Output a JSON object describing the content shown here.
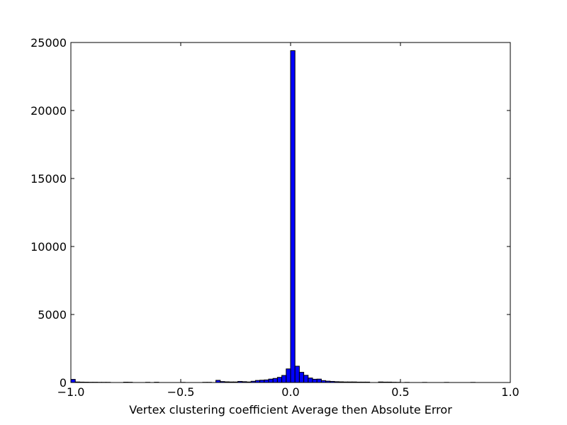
{
  "chart_data": {
    "type": "bar",
    "title": "",
    "xlabel": "Vertex clustering coefficient Average then Absolute Error",
    "ylabel": "",
    "xlim": [
      -1.0,
      1.0
    ],
    "ylim": [
      0,
      25000
    ],
    "x_ticks": [
      -1.0,
      -0.5,
      0.0,
      0.5,
      1.0
    ],
    "x_tick_labels": [
      "−1.0",
      "−0.5",
      "0.0",
      "0.5",
      "1.0"
    ],
    "y_ticks": [
      0,
      5000,
      10000,
      15000,
      20000,
      25000
    ],
    "y_tick_labels": [
      "0",
      "5000",
      "10000",
      "15000",
      "20000",
      "25000"
    ],
    "grid": false,
    "bar_color": "#0000ff",
    "bin_width": 0.02,
    "bins": [
      {
        "x": -1.0,
        "value": 230
      },
      {
        "x": -0.98,
        "value": 40
      },
      {
        "x": -0.96,
        "value": 30
      },
      {
        "x": -0.94,
        "value": 25
      },
      {
        "x": -0.92,
        "value": 20
      },
      {
        "x": -0.9,
        "value": 20
      },
      {
        "x": -0.88,
        "value": 15
      },
      {
        "x": -0.86,
        "value": 15
      },
      {
        "x": -0.84,
        "value": 15
      },
      {
        "x": -0.76,
        "value": 25
      },
      {
        "x": -0.74,
        "value": 20
      },
      {
        "x": -0.66,
        "value": 15
      },
      {
        "x": -0.62,
        "value": 20
      },
      {
        "x": -0.5,
        "value": 10
      },
      {
        "x": -0.4,
        "value": 15
      },
      {
        "x": -0.38,
        "value": 15
      },
      {
        "x": -0.34,
        "value": 160
      },
      {
        "x": -0.32,
        "value": 70
      },
      {
        "x": -0.3,
        "value": 50
      },
      {
        "x": -0.28,
        "value": 40
      },
      {
        "x": -0.26,
        "value": 40
      },
      {
        "x": -0.24,
        "value": 80
      },
      {
        "x": -0.22,
        "value": 60
      },
      {
        "x": -0.2,
        "value": 40
      },
      {
        "x": -0.18,
        "value": 90
      },
      {
        "x": -0.16,
        "value": 150
      },
      {
        "x": -0.14,
        "value": 170
      },
      {
        "x": -0.12,
        "value": 190
      },
      {
        "x": -0.1,
        "value": 250
      },
      {
        "x": -0.08,
        "value": 300
      },
      {
        "x": -0.06,
        "value": 380
      },
      {
        "x": -0.04,
        "value": 520
      },
      {
        "x": -0.02,
        "value": 1000
      },
      {
        "x": 0.0,
        "value": 24400
      },
      {
        "x": 0.02,
        "value": 1200
      },
      {
        "x": 0.04,
        "value": 750
      },
      {
        "x": 0.06,
        "value": 530
      },
      {
        "x": 0.08,
        "value": 330
      },
      {
        "x": 0.1,
        "value": 240
      },
      {
        "x": 0.12,
        "value": 250
      },
      {
        "x": 0.14,
        "value": 140
      },
      {
        "x": 0.16,
        "value": 100
      },
      {
        "x": 0.18,
        "value": 80
      },
      {
        "x": 0.2,
        "value": 60
      },
      {
        "x": 0.22,
        "value": 50
      },
      {
        "x": 0.24,
        "value": 40
      },
      {
        "x": 0.26,
        "value": 40
      },
      {
        "x": 0.28,
        "value": 40
      },
      {
        "x": 0.3,
        "value": 30
      },
      {
        "x": 0.32,
        "value": 30
      },
      {
        "x": 0.34,
        "value": 30
      },
      {
        "x": 0.4,
        "value": 40
      },
      {
        "x": 0.42,
        "value": 30
      },
      {
        "x": 0.44,
        "value": 30
      },
      {
        "x": 0.46,
        "value": 20
      },
      {
        "x": 0.48,
        "value": 15
      },
      {
        "x": 0.52,
        "value": 10
      },
      {
        "x": 0.6,
        "value": 10
      },
      {
        "x": 0.7,
        "value": 10
      },
      {
        "x": 0.82,
        "value": 10
      }
    ]
  }
}
